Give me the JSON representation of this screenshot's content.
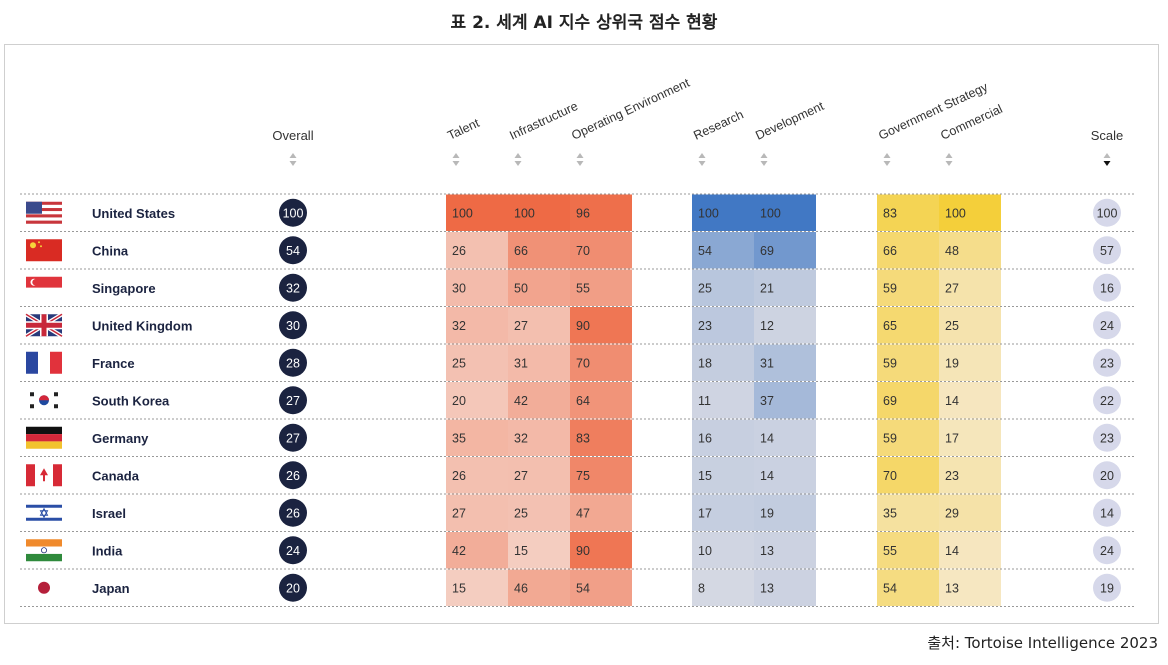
{
  "title": "표 2. 세계 AI 지수 상위국 점수 현황",
  "source": "출처: Tortoise Intelligence 2023",
  "chart_data": {
    "type": "table",
    "columns": [
      {
        "key": "overall",
        "label": "Overall",
        "group": "overall"
      },
      {
        "key": "talent",
        "label": "Talent",
        "group": "implementation"
      },
      {
        "key": "infrastructure",
        "label": "Infrastructure",
        "group": "implementation"
      },
      {
        "key": "operating_environment",
        "label": "Operating Environment",
        "group": "implementation"
      },
      {
        "key": "research",
        "label": "Research",
        "group": "innovation"
      },
      {
        "key": "development",
        "label": "Development",
        "group": "innovation"
      },
      {
        "key": "government_strategy",
        "label": "Government Strategy",
        "group": "investment"
      },
      {
        "key": "commercial",
        "label": "Commercial",
        "group": "investment"
      },
      {
        "key": "scale",
        "label": "Scale",
        "group": "scale"
      }
    ],
    "sorted_by": "Scale",
    "colors": {
      "implementation": "#ee6a45",
      "innovation": "#4178c4",
      "investment": "#f4cf3a",
      "overall_badge": "#1b2340",
      "scale_badge": "#d6d8ea"
    },
    "rows": [
      {
        "country": "United States",
        "flag": "us",
        "overall": 100,
        "talent": 100,
        "infrastructure": 100,
        "operating_environment": 96,
        "research": 100,
        "development": 100,
        "government_strategy": 83,
        "commercial": 100,
        "scale": 100
      },
      {
        "country": "China",
        "flag": "cn",
        "overall": 54,
        "talent": 26,
        "infrastructure": 66,
        "operating_environment": 70,
        "research": 54,
        "development": 69,
        "government_strategy": 66,
        "commercial": 48,
        "scale": 57
      },
      {
        "country": "Singapore",
        "flag": "sg",
        "overall": 32,
        "talent": 30,
        "infrastructure": 50,
        "operating_environment": 55,
        "research": 25,
        "development": 21,
        "government_strategy": 59,
        "commercial": 27,
        "scale": 16
      },
      {
        "country": "United Kingdom",
        "flag": "gb",
        "overall": 30,
        "talent": 32,
        "infrastructure": 27,
        "operating_environment": 90,
        "research": 23,
        "development": 12,
        "government_strategy": 65,
        "commercial": 25,
        "scale": 24
      },
      {
        "country": "France",
        "flag": "fr",
        "overall": 28,
        "talent": 25,
        "infrastructure": 31,
        "operating_environment": 70,
        "research": 18,
        "development": 31,
        "government_strategy": 59,
        "commercial": 19,
        "scale": 23
      },
      {
        "country": "South Korea",
        "flag": "kr",
        "overall": 27,
        "talent": 20,
        "infrastructure": 42,
        "operating_environment": 64,
        "research": 11,
        "development": 37,
        "government_strategy": 69,
        "commercial": 14,
        "scale": 22
      },
      {
        "country": "Germany",
        "flag": "de",
        "overall": 27,
        "talent": 35,
        "infrastructure": 32,
        "operating_environment": 83,
        "research": 16,
        "development": 14,
        "government_strategy": 59,
        "commercial": 17,
        "scale": 23
      },
      {
        "country": "Canada",
        "flag": "ca",
        "overall": 26,
        "talent": 26,
        "infrastructure": 27,
        "operating_environment": 75,
        "research": 15,
        "development": 14,
        "government_strategy": 70,
        "commercial": 23,
        "scale": 20
      },
      {
        "country": "Israel",
        "flag": "il",
        "overall": 26,
        "talent": 27,
        "infrastructure": 25,
        "operating_environment": 47,
        "research": 17,
        "development": 19,
        "government_strategy": 35,
        "commercial": 29,
        "scale": 14
      },
      {
        "country": "India",
        "flag": "in",
        "overall": 24,
        "talent": 42,
        "infrastructure": 15,
        "operating_environment": 90,
        "research": 10,
        "development": 13,
        "government_strategy": 55,
        "commercial": 14,
        "scale": 24
      },
      {
        "country": "Japan",
        "flag": "jp",
        "overall": 20,
        "talent": 15,
        "infrastructure": 46,
        "operating_environment": 54,
        "research": 8,
        "development": 13,
        "government_strategy": 54,
        "commercial": 13,
        "scale": 19
      }
    ]
  }
}
